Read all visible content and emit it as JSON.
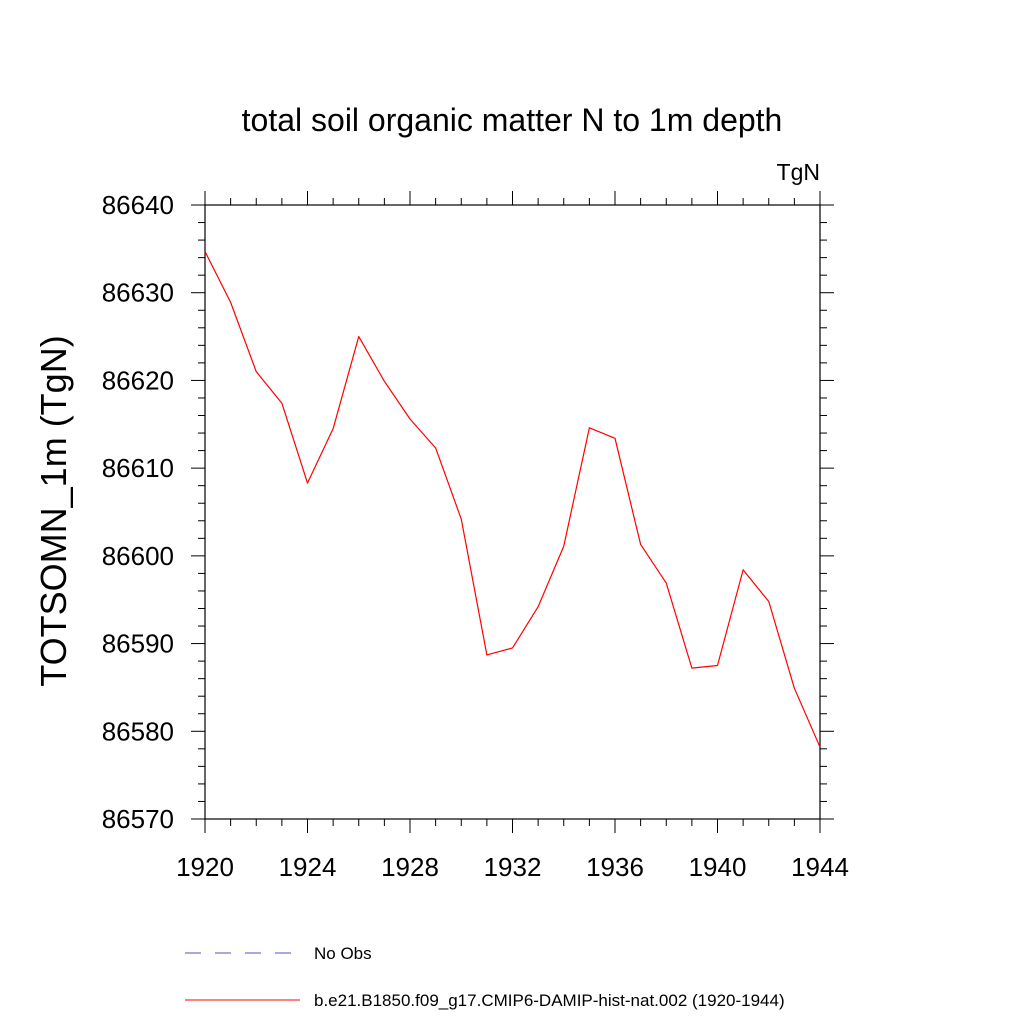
{
  "chart_data": {
    "type": "line",
    "title": "total soil organic matter N to 1m depth",
    "units_label": "TgN",
    "ylabel": "TOTSOMN_1m  (TgN)",
    "xlabel": "",
    "xlim": [
      1920,
      1944
    ],
    "ylim": [
      86570,
      86640
    ],
    "x_ticks": [
      1920,
      1924,
      1928,
      1932,
      1936,
      1940,
      1944
    ],
    "y_ticks": [
      86570,
      86580,
      86590,
      86600,
      86610,
      86620,
      86630,
      86640
    ],
    "grid": false,
    "legend_position": "bottom",
    "x": [
      1920,
      1921,
      1922,
      1923,
      1924,
      1925,
      1926,
      1927,
      1928,
      1929,
      1930,
      1931,
      1932,
      1933,
      1934,
      1935,
      1936,
      1937,
      1938,
      1939,
      1940,
      1941,
      1942,
      1943,
      1944
    ],
    "series": [
      {
        "name": "b.e21.B1850.f09_g17.CMIP6-DAMIP-hist-nat.002 (1920-1944)",
        "color": "#ff0000",
        "style": "solid",
        "values": [
          86634.7,
          86628.9,
          86621.0,
          86617.4,
          86608.3,
          86614.5,
          86625.0,
          86619.9,
          86615.6,
          86612.3,
          86604.2,
          86588.7,
          86589.5,
          86594.2,
          86601.1,
          86614.6,
          86613.4,
          86601.3,
          86596.9,
          86587.2,
          86587.5,
          86598.4,
          86594.8,
          86584.9,
          86578.2
        ]
      }
    ],
    "legend": [
      {
        "label": "No Obs",
        "color": "#5050c8",
        "style": "dashed"
      },
      {
        "label": "b.e21.B1850.f09_g17.CMIP6-DAMIP-hist-nat.002 (1920-1944)",
        "color": "#ff0000",
        "style": "solid"
      }
    ]
  }
}
